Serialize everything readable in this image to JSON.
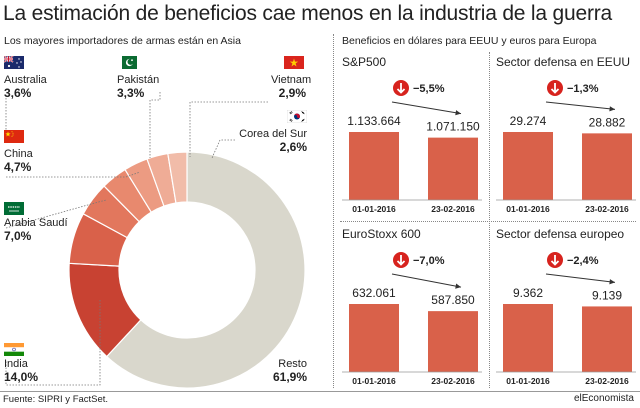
{
  "title": "La estimación de beneficios cae menos en la industria de la guerra",
  "left_panel": {
    "subtitle": "Los mayores importadores de armas están en Asia"
  },
  "right_panel": {
    "subtitle": "Beneficios en dólares para EEUU y euros para Europa"
  },
  "footer": {
    "source": "Fuente: SIPRI y FactSet.",
    "brand": "elEconomista"
  },
  "colors": {
    "bar": "#d9614a",
    "down_icon": "#d7231e",
    "resto": "#d9d7cc"
  },
  "chart_data": [
    {
      "type": "pie",
      "donut": true,
      "slices": [
        {
          "label": "Resto",
          "value": 61.9,
          "value_label": "61,9%",
          "color": "#d9d7cc",
          "icon": "none"
        },
        {
          "label": "India",
          "value": 14.0,
          "value_label": "14,0%",
          "color": "#c84232",
          "icon": "india-flag-icon"
        },
        {
          "label": "Arabia Saudí",
          "value": 7.0,
          "value_label": "7,0%",
          "color": "#d9614a",
          "icon": "saudi-flag-icon"
        },
        {
          "label": "China",
          "value": 4.7,
          "value_label": "4,7%",
          "color": "#e2775d",
          "icon": "china-flag-icon"
        },
        {
          "label": "Australia",
          "value": 3.6,
          "value_label": "3,6%",
          "color": "#e8896e",
          "icon": "australia-flag-icon"
        },
        {
          "label": "Pakistán",
          "value": 3.3,
          "value_label": "3,3%",
          "color": "#ec9b82",
          "icon": "pakistan-flag-icon"
        },
        {
          "label": "Vietnam",
          "value": 2.9,
          "value_label": "2,9%",
          "color": "#efac96",
          "icon": "vietnam-flag-icon"
        },
        {
          "label": "Corea del Sur",
          "value": 2.6,
          "value_label": "2,6%",
          "color": "#f1bca9",
          "icon": "korea-flag-icon"
        }
      ]
    },
    {
      "type": "bar",
      "title": "S&P500",
      "categories": [
        "01-01-2016",
        "23-02-2016"
      ],
      "values": [
        1133664,
        1071150
      ],
      "value_labels": [
        "1.133.664",
        "1.071.150"
      ],
      "change": "−5,5%"
    },
    {
      "type": "bar",
      "title": "Sector defensa en EEUU",
      "categories": [
        "01-01-2016",
        "23-02-2016"
      ],
      "values": [
        29274,
        28882
      ],
      "value_labels": [
        "29.274",
        "28.882"
      ],
      "change": "−1,3%"
    },
    {
      "type": "bar",
      "title": "EuroStoxx 600",
      "categories": [
        "01-01-2016",
        "23-02-2016"
      ],
      "values": [
        632061,
        587850
      ],
      "value_labels": [
        "632.061",
        "587.850"
      ],
      "change": "−7,0%"
    },
    {
      "type": "bar",
      "title": "Sector defensa europeo",
      "categories": [
        "01-01-2016",
        "23-02-2016"
      ],
      "values": [
        9362,
        9139
      ],
      "value_labels": [
        "9.362",
        "9.139"
      ],
      "change": "−2,4%"
    }
  ]
}
